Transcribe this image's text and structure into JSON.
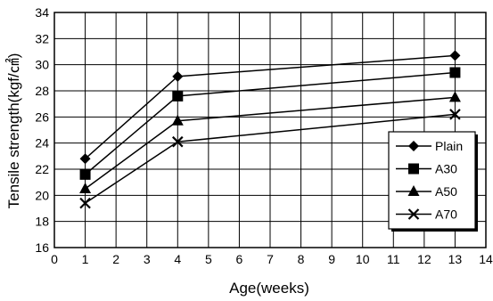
{
  "chart_data": {
    "type": "line",
    "xlabel": "Age(weeks)",
    "ylabel": "Tensile strength(kgf/㎠)",
    "xlim": [
      0,
      14
    ],
    "ylim": [
      16,
      34
    ],
    "xticks": [
      0,
      1,
      2,
      3,
      4,
      5,
      6,
      7,
      8,
      9,
      10,
      11,
      12,
      13,
      14
    ],
    "yticks": [
      16,
      18,
      20,
      22,
      24,
      26,
      28,
      30,
      32,
      34
    ],
    "grid": true,
    "legend_position": "right",
    "line_color": "#000000",
    "x": [
      1,
      4,
      13
    ],
    "series": [
      {
        "name": "Plain",
        "marker": "diamond",
        "values": [
          22.8,
          29.1,
          30.7
        ]
      },
      {
        "name": "A30",
        "marker": "square",
        "values": [
          21.6,
          27.6,
          29.4
        ]
      },
      {
        "name": "A50",
        "marker": "triangle",
        "values": [
          20.5,
          25.7,
          27.5
        ]
      },
      {
        "name": "A70",
        "marker": "x",
        "values": [
          19.4,
          24.1,
          26.2
        ]
      }
    ]
  }
}
